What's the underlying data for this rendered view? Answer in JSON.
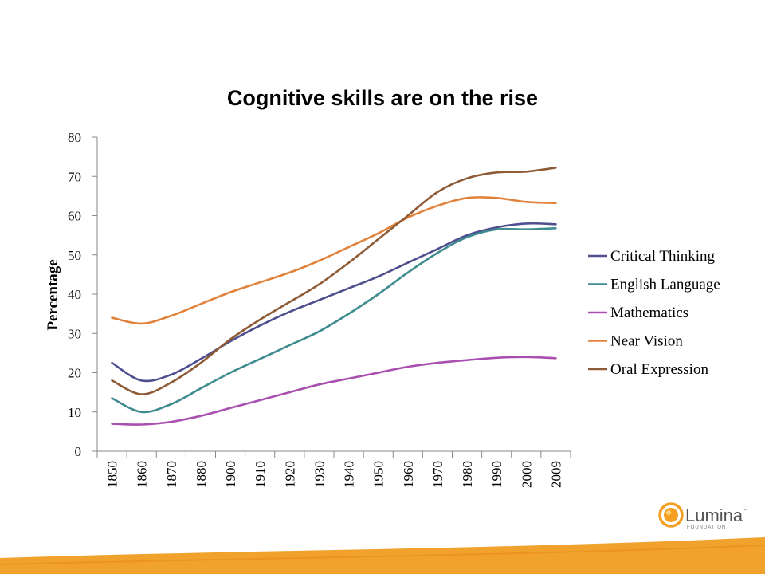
{
  "title": "Cognitive skills are on the rise",
  "logo": {
    "name": "Lumina",
    "tm": "™",
    "sub": "FOUNDATION",
    "icon": "lumina-sun-icon"
  },
  "colors": {
    "footer_bar": "#f1a22c",
    "logo_orange": "#f3a024"
  },
  "chart_data": {
    "type": "line",
    "title": "",
    "xlabel": "",
    "ylabel": "Percentage",
    "ylim": [
      0,
      80
    ],
    "yticks": [
      0,
      10,
      20,
      30,
      40,
      50,
      60,
      70,
      80
    ],
    "categories": [
      "1850",
      "1860",
      "1870",
      "1880",
      "1900",
      "1910",
      "1920",
      "1930",
      "1940",
      "1950",
      "1960",
      "1970",
      "1980",
      "1990",
      "2000",
      "2009"
    ],
    "grid": false,
    "legend_position": "right",
    "series": [
      {
        "name": "Critical Thinking",
        "color": "#4f4f8f",
        "values": [
          22.5,
          18,
          19.5,
          23.5,
          28,
          32,
          35.5,
          38.5,
          41.5,
          44.5,
          48,
          51.5,
          55,
          57,
          58,
          57.8
        ]
      },
      {
        "name": "English Language",
        "color": "#3e8b90",
        "values": [
          13.5,
          10,
          12,
          16,
          20,
          23.5,
          27,
          30.5,
          35,
          40,
          45.5,
          50.5,
          54.5,
          56.5,
          56.5,
          56.8
        ]
      },
      {
        "name": "Mathematics",
        "color": "#a84fb0",
        "values": [
          7,
          6.8,
          7.5,
          9,
          11,
          13,
          15,
          17,
          18.5,
          20,
          21.5,
          22.5,
          23.2,
          23.8,
          24,
          23.7
        ]
      },
      {
        "name": "Near Vision",
        "color": "#e2813a",
        "values": [
          34,
          32.5,
          34.5,
          37.5,
          40.5,
          43,
          45.5,
          48.5,
          52,
          55.5,
          59.5,
          62.5,
          64.5,
          64.5,
          63.5,
          63.2
        ]
      },
      {
        "name": "Oral Expression",
        "color": "#8e5b36",
        "values": [
          18,
          14.5,
          17.5,
          22.5,
          28.5,
          33.5,
          38,
          42.5,
          48,
          54,
          60,
          66,
          69.5,
          71,
          71.2,
          72.2
        ]
      }
    ]
  }
}
